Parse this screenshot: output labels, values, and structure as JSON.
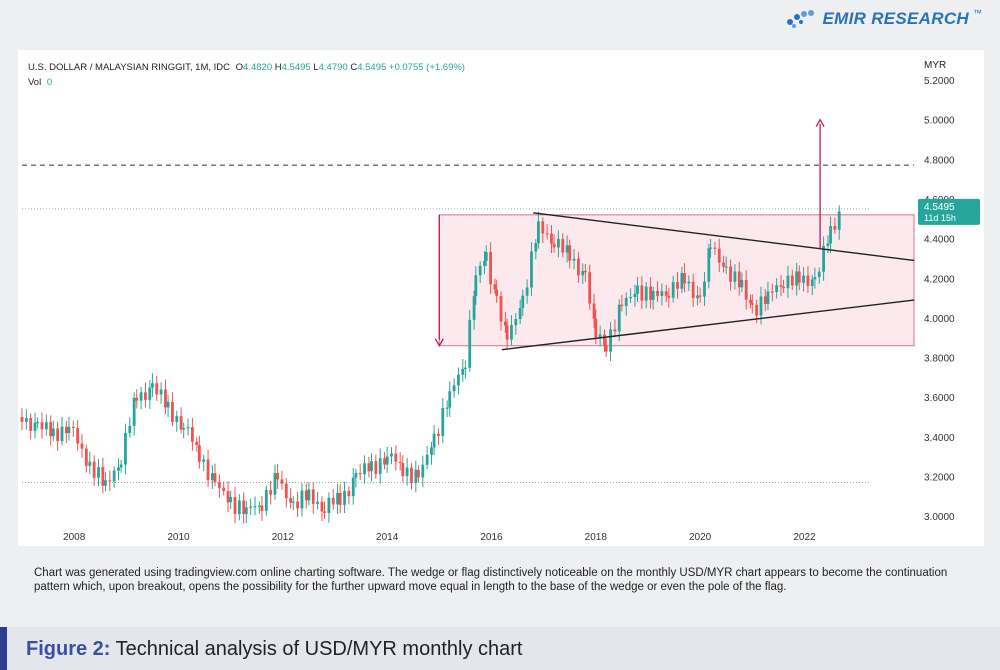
{
  "brand": {
    "logo_text": "EMIR RESEARCH",
    "trademark": "™"
  },
  "chart_header": {
    "symbol": "U.S. DOLLAR / MALAYSIAN RINGGIT, 1M, IDC",
    "o_label": "O",
    "o_value": "4.4820",
    "h_label": "H",
    "h_value": "4.5495",
    "l_label": "L",
    "l_value": "4.4790",
    "c_label": "C",
    "c_value": "4.5495",
    "change": "+0.0755 (+1.69%)",
    "vol_label": "Vol",
    "vol_value": "0",
    "currency": "MYR"
  },
  "chart_data": {
    "type": "candlestick",
    "title": "U.S. DOLLAR / MALAYSIAN RINGGIT, 1M, IDC",
    "ylabel": "MYR",
    "ylim": [
      2.9,
      5.2
    ],
    "xlim": [
      2007.0,
      2024.1
    ],
    "x_ticks": [
      2008,
      2010,
      2012,
      2014,
      2016,
      2018,
      2020,
      2022
    ],
    "y_ticks": [
      3.0,
      3.2,
      3.4,
      3.6,
      3.8,
      4.0,
      4.2,
      4.4,
      4.6,
      4.8,
      5.0,
      5.2
    ],
    "y_tick_labels": [
      "3.0000",
      "3.2000",
      "3.4000",
      "3.6000",
      "3.8000",
      "4.0000",
      "4.2000",
      "4.4000",
      "4.6000",
      "4.8000",
      "5.0000",
      "5.2000"
    ],
    "last_price": "4.5495",
    "countdown": "11d 15h",
    "close_series": [
      [
        2007.0,
        3.5
      ],
      [
        2007.3,
        3.45
      ],
      [
        2007.6,
        3.42
      ],
      [
        2007.9,
        3.45
      ],
      [
        2008.3,
        3.26
      ],
      [
        2008.6,
        3.15
      ],
      [
        2008.9,
        3.3
      ],
      [
        2009.2,
        3.6
      ],
      [
        2009.5,
        3.65
      ],
      [
        2009.8,
        3.55
      ],
      [
        2010.1,
        3.45
      ],
      [
        2010.4,
        3.32
      ],
      [
        2010.7,
        3.15
      ],
      [
        2011.0,
        3.08
      ],
      [
        2011.3,
        3.02
      ],
      [
        2011.6,
        3.08
      ],
      [
        2011.9,
        3.18
      ],
      [
        2012.2,
        3.06
      ],
      [
        2012.5,
        3.1
      ],
      [
        2012.8,
        3.05
      ],
      [
        2013.1,
        3.08
      ],
      [
        2013.4,
        3.2
      ],
      [
        2013.7,
        3.25
      ],
      [
        2014.0,
        3.3
      ],
      [
        2014.3,
        3.25
      ],
      [
        2014.6,
        3.18
      ],
      [
        2014.9,
        3.4
      ],
      [
        2015.2,
        3.6
      ],
      [
        2015.5,
        3.8
      ],
      [
        2015.7,
        4.2
      ],
      [
        2015.9,
        4.3
      ],
      [
        2016.1,
        4.1
      ],
      [
        2016.3,
        3.88
      ],
      [
        2016.6,
        4.1
      ],
      [
        2016.9,
        4.45
      ],
      [
        2017.2,
        4.4
      ],
      [
        2017.5,
        4.3
      ],
      [
        2017.8,
        4.22
      ],
      [
        2018.0,
        3.9
      ],
      [
        2018.2,
        3.88
      ],
      [
        2018.5,
        4.05
      ],
      [
        2018.8,
        4.15
      ],
      [
        2019.1,
        4.1
      ],
      [
        2019.4,
        4.15
      ],
      [
        2019.7,
        4.18
      ],
      [
        2020.0,
        4.1
      ],
      [
        2020.2,
        4.35
      ],
      [
        2020.5,
        4.25
      ],
      [
        2020.8,
        4.15
      ],
      [
        2021.0,
        4.05
      ],
      [
        2021.3,
        4.1
      ],
      [
        2021.6,
        4.2
      ],
      [
        2021.9,
        4.18
      ],
      [
        2022.2,
        4.2
      ],
      [
        2022.5,
        4.42
      ],
      [
        2022.7,
        4.5495
      ]
    ],
    "annotations": {
      "rectangle": {
        "x0": 2015.0,
        "x1": 2024.1,
        "y0": 3.86,
        "y1": 4.52
      },
      "wedge_upper": [
        [
          2016.8,
          4.53
        ],
        [
          2024.1,
          4.29
        ]
      ],
      "wedge_lower": [
        [
          2016.2,
          3.84
        ],
        [
          2024.1,
          4.09
        ]
      ],
      "pole_arrow": {
        "x": 2015.0,
        "from": 4.52,
        "to": 3.86
      },
      "target_arrow": {
        "x": 2022.3,
        "from": 4.35,
        "to": 5.0
      },
      "dashed_level": 4.77,
      "dotted_levels": [
        3.17,
        4.55
      ]
    }
  },
  "caption": "Chart was generated using tradingview.com online charting software. The wedge or flag distinctively noticeable on the monthly USD/MYR chart appears to become the continuation pattern which, upon breakout, opens the possibility for the further upward move equal in length to the base of the wedge or even the pole of the flag.",
  "figure": {
    "label": "Figure 2:",
    "title": "Technical analysis of USD/MYR monthly chart"
  },
  "colors": {
    "up": "#26a69a",
    "down": "#ef5350",
    "accent": "#2c3f8f",
    "annotation": "#c2185b"
  }
}
